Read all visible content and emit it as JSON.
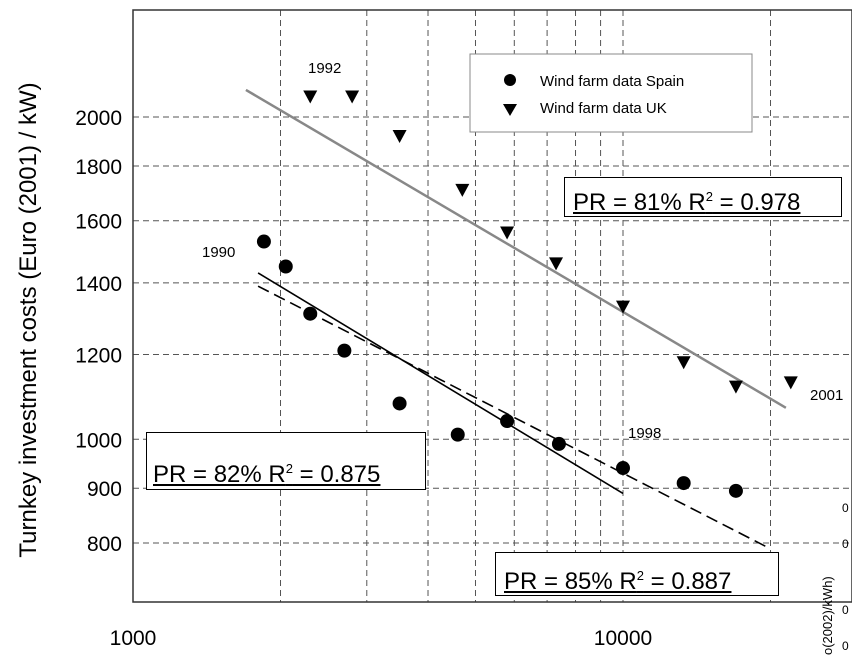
{
  "chart_data": {
    "type": "scatter",
    "ylabel": "Turnkey investment costs (Euro (2001) / kW)",
    "xlabel": "",
    "xscale": "log",
    "yscale": "log",
    "xticks": [
      1000,
      10000
    ],
    "xtick_labels": [
      "1000",
      "10000"
    ],
    "yticks": [
      800,
      900,
      1000,
      1200,
      1400,
      1600,
      1800,
      2000
    ],
    "ytick_labels": [
      "800",
      "900",
      "1000",
      "1200",
      "1400",
      "1600",
      "1800",
      "2000"
    ],
    "grid": true,
    "legend_placement": "top-right",
    "series": [
      {
        "name": "Wind farm data Spain",
        "marker": "circle",
        "color": "#000000",
        "x": [
          1850,
          2050,
          2300,
          2700,
          3500,
          4600,
          5800,
          7400,
          10000,
          13300,
          17000
        ],
        "y": [
          1530,
          1450,
          1310,
          1210,
          1080,
          1010,
          1040,
          990,
          940,
          910,
          895
        ]
      },
      {
        "name": "Wind farm data UK",
        "marker": "triangle-down",
        "color": "#000000",
        "x": [
          2300,
          2800,
          3500,
          4700,
          5800,
          7300,
          10000,
          13300,
          17000,
          22000
        ],
        "y": [
          2090,
          2090,
          1920,
          1710,
          1560,
          1460,
          1330,
          1180,
          1120,
          1130
        ]
      }
    ],
    "fit_lines": [
      {
        "color": "#888888",
        "style": "solid",
        "x": [
          1700,
          21500
        ],
        "y": [
          2120,
          1070
        ]
      },
      {
        "color": "#000000",
        "style": "solid",
        "x": [
          1800,
          10000
        ],
        "y": [
          1430,
          890
        ]
      },
      {
        "color": "#000000",
        "style": "dashed",
        "x": [
          1800,
          20000
        ],
        "y": [
          1390,
          790
        ]
      }
    ],
    "annotations": {
      "year_1992": "1992",
      "year_1990": "1990",
      "year_1998": "1998",
      "year_2001": "2001",
      "pr_uk": "PR = 81% R",
      "pr_uk_r2": "2",
      "pr_uk_val": " = 0.978",
      "pr_spain_solid": "PR = 82% R",
      "pr_spain_solid_r2": "2",
      "pr_spain_solid_val": " = 0.875",
      "pr_spain_dashed": "PR = 85% R",
      "pr_spain_dashed_r2": "2",
      "pr_spain_dashed_val": " = 0.887"
    },
    "side_fragment": {
      "label": "o(2002)/kWh)",
      "marks": [
        "0",
        "0",
        "0",
        "0"
      ]
    }
  }
}
